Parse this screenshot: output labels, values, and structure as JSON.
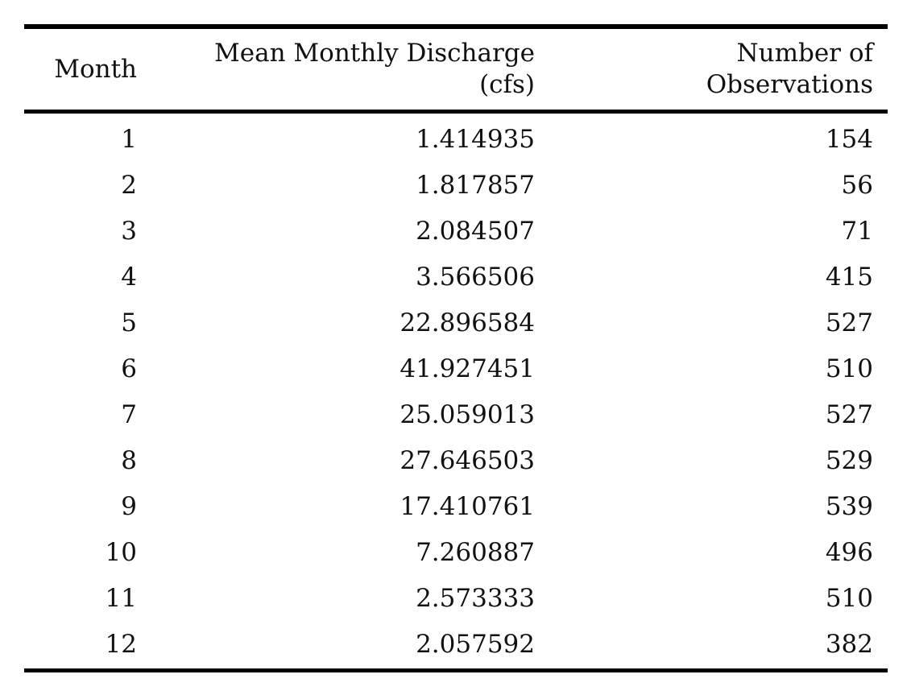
{
  "table": {
    "headers": {
      "month": "Month",
      "discharge_line1": "Mean Monthly Discharge",
      "discharge_line2": "(cfs)",
      "obs_line1": "Number of",
      "obs_line2": "Observations"
    },
    "rows": [
      {
        "month": "1",
        "discharge": "1.414935",
        "obs": "154"
      },
      {
        "month": "2",
        "discharge": "1.817857",
        "obs": "56"
      },
      {
        "month": "3",
        "discharge": "2.084507",
        "obs": "71"
      },
      {
        "month": "4",
        "discharge": "3.566506",
        "obs": "415"
      },
      {
        "month": "5",
        "discharge": "22.896584",
        "obs": "527"
      },
      {
        "month": "6",
        "discharge": "41.927451",
        "obs": "510"
      },
      {
        "month": "7",
        "discharge": "25.059013",
        "obs": "527"
      },
      {
        "month": "8",
        "discharge": "27.646503",
        "obs": "529"
      },
      {
        "month": "9",
        "discharge": "17.410761",
        "obs": "539"
      },
      {
        "month": "10",
        "discharge": "7.260887",
        "obs": "496"
      },
      {
        "month": "11",
        "discharge": "2.573333",
        "obs": "510"
      },
      {
        "month": "12",
        "discharge": "2.057592",
        "obs": "382"
      }
    ]
  }
}
